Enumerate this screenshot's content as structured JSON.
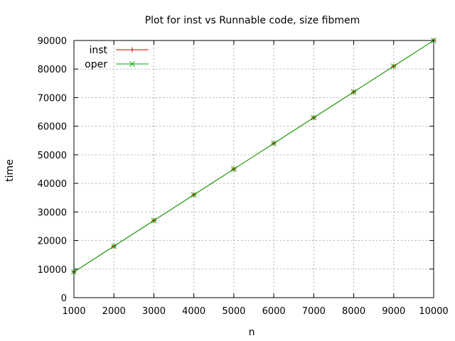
{
  "chart_data": {
    "type": "line",
    "title": "Plot for inst vs Runnable code, size fibmem",
    "xlabel": "n",
    "ylabel": "time",
    "xlim": [
      1000,
      10000
    ],
    "ylim": [
      0,
      90000
    ],
    "xticks": [
      1000,
      2000,
      3000,
      4000,
      5000,
      6000,
      7000,
      8000,
      9000,
      10000
    ],
    "yticks": [
      0,
      10000,
      20000,
      30000,
      40000,
      50000,
      60000,
      70000,
      80000,
      90000
    ],
    "grid": true,
    "legend_position": "top-left",
    "x": [
      1000,
      2000,
      3000,
      4000,
      5000,
      6000,
      7000,
      8000,
      9000,
      10000
    ],
    "series": [
      {
        "name": "inst",
        "marker": "plus",
        "color": "#cc0000",
        "values": [
          9000,
          18000,
          27000,
          36000,
          45000,
          54000,
          63000,
          72000,
          81000,
          90000
        ]
      },
      {
        "name": "oper",
        "marker": "cross",
        "color": "#00aa00",
        "values": [
          9000,
          18000,
          27000,
          36000,
          45000,
          54000,
          63000,
          72000,
          81000,
          90000
        ]
      }
    ]
  }
}
